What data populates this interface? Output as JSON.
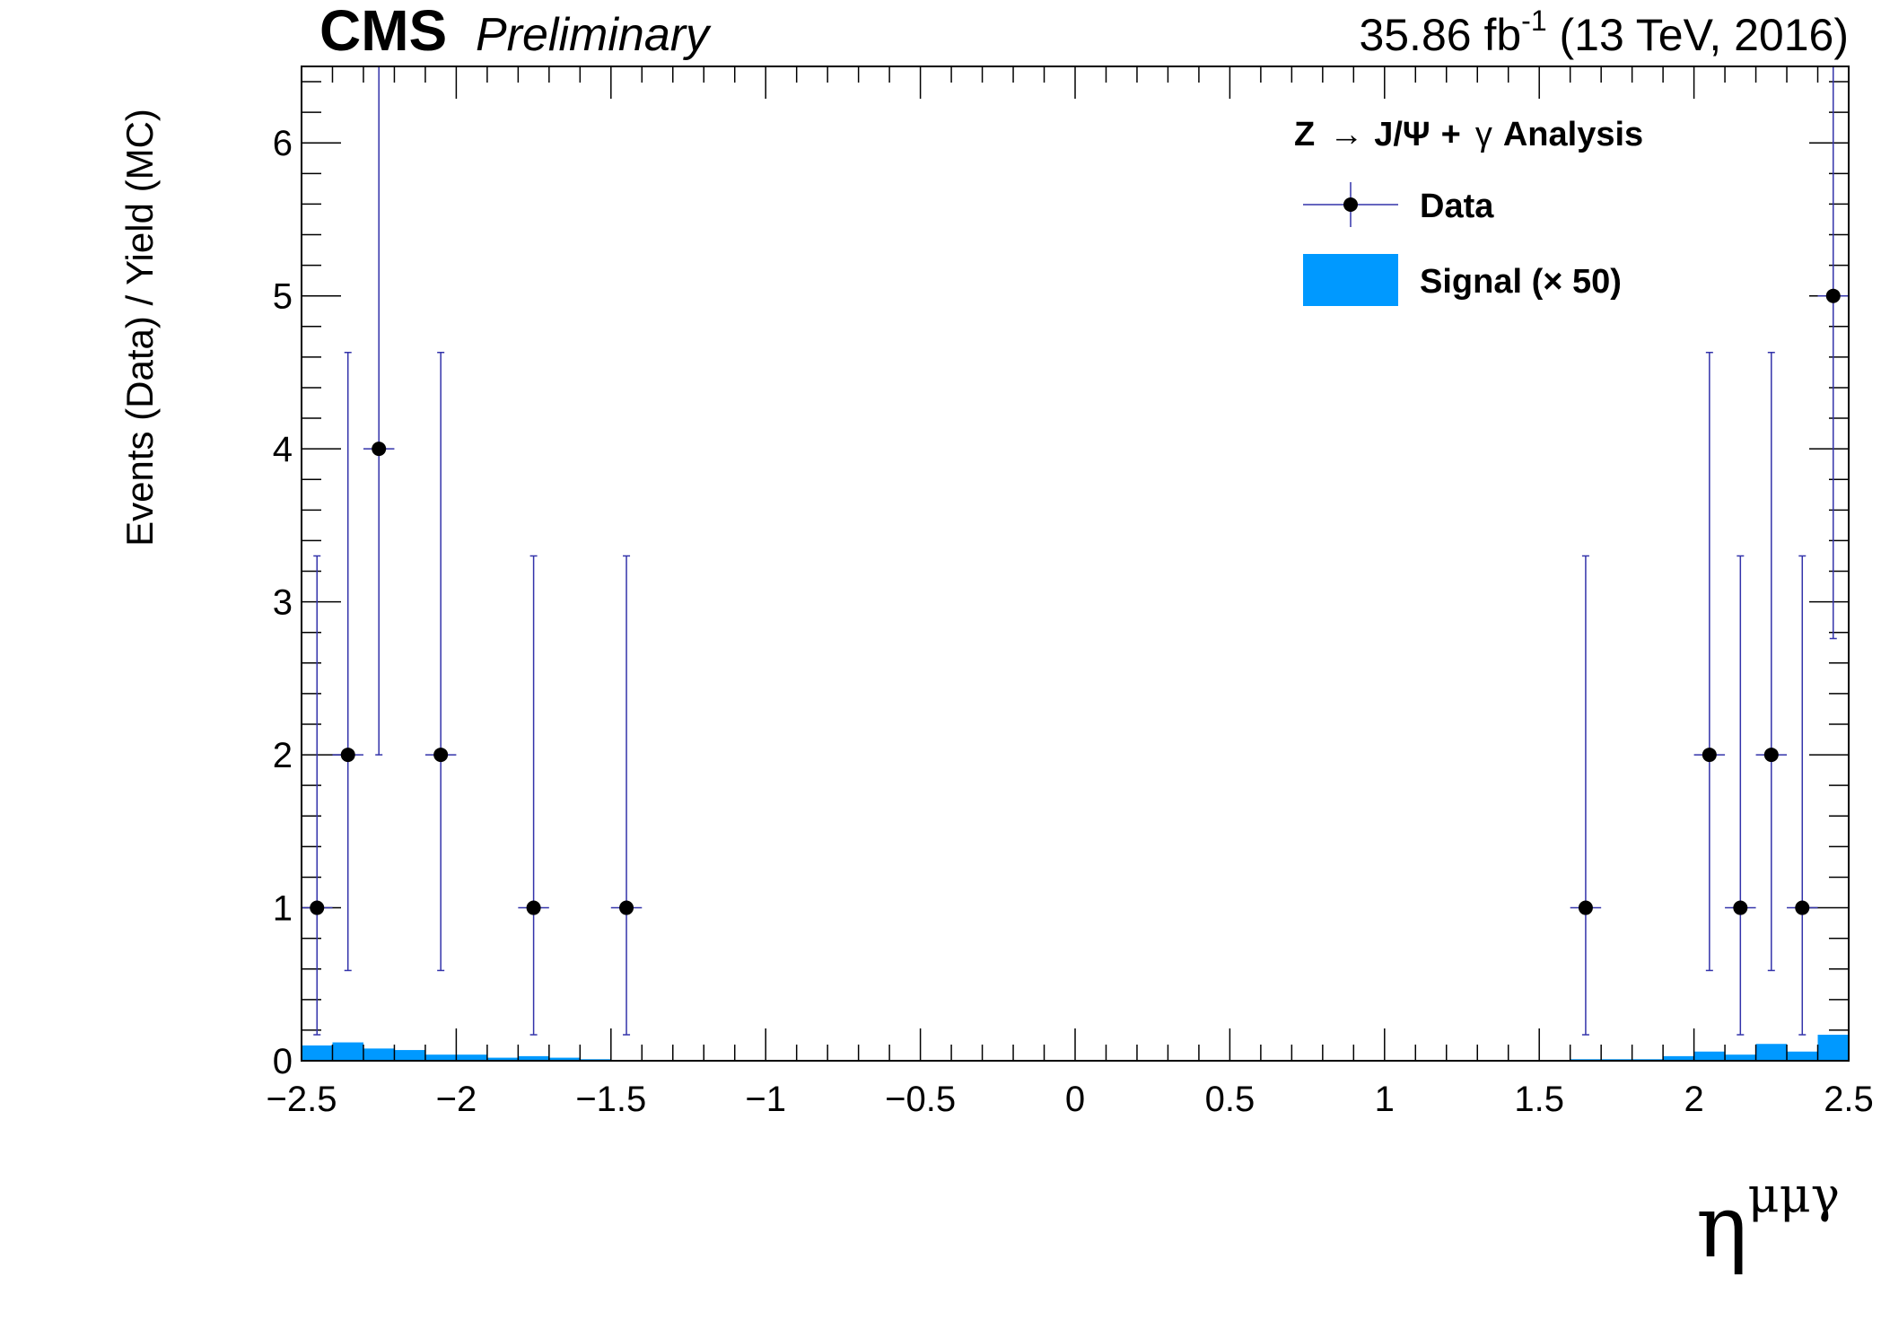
{
  "header": {
    "cms": "CMS",
    "preliminary": "Preliminary",
    "lumi_value": "35.86 fb",
    "lumi_exp": "-1",
    "lumi_rest": " (13 TeV, 2016)"
  },
  "legend": {
    "title_z": "Z",
    "title_arrow": "→",
    "title_jpsi": "J/Ψ",
    "title_plus": "+",
    "title_gamma": "γ",
    "title_analysis": "Analysis",
    "data_label": "Data",
    "signal_label": "Signal (× 50)"
  },
  "colors": {
    "signal_fill": "#0099ff",
    "data_marker": "#000000",
    "error_bar": "#3333aa"
  },
  "chart_data": {
    "type": "bar",
    "ylabel": "Events (Data) / Yield (MC)",
    "xlabel_base": "η",
    "xlabel_sup": "μμγ",
    "xlim": [
      -2.5,
      2.5
    ],
    "ylim": [
      0,
      6.5
    ],
    "x_ticks": [
      -2.5,
      -2,
      -1.5,
      -1,
      -0.5,
      0,
      0.5,
      1,
      1.5,
      2,
      2.5
    ],
    "x_tick_labels": [
      "−2.5",
      "−2",
      "−1.5",
      "−1",
      "−0.5",
      "0",
      "0.5",
      "1",
      "1.5",
      "2",
      "2.5"
    ],
    "y_ticks": [
      0,
      1,
      2,
      3,
      4,
      5,
      6
    ],
    "y_tick_labels": [
      "0",
      "1",
      "2",
      "3",
      "4",
      "5",
      "6"
    ],
    "bin_width": 0.1,
    "signal": {
      "name": "Signal (× 50)",
      "bin_edges_low": [
        -2.5,
        -2.4,
        -2.3,
        -2.2,
        -2.1,
        -2.0,
        -1.9,
        -1.8,
        -1.7,
        -1.6,
        -1.5,
        1.2,
        1.3,
        1.4,
        1.5,
        1.6,
        1.7,
        1.8,
        1.9,
        2.0,
        2.1,
        2.2,
        2.3,
        2.4
      ],
      "values": [
        0.1,
        0.12,
        0.08,
        0.07,
        0.04,
        0.04,
        0.02,
        0.03,
        0.02,
        0.01,
        0.005,
        0.005,
        0.005,
        0.005,
        0.005,
        0.01,
        0.01,
        0.01,
        0.03,
        0.06,
        0.04,
        0.11,
        0.06,
        0.17
      ]
    },
    "data": {
      "name": "Data",
      "x": [
        -2.45,
        -2.35,
        -2.25,
        -2.05,
        -1.75,
        -1.45,
        1.65,
        2.05,
        2.15,
        2.25,
        2.35,
        2.45
      ],
      "y": [
        1,
        2,
        4,
        2,
        1,
        1,
        1,
        2,
        1,
        2,
        1,
        5
      ],
      "err_low": [
        0.83,
        1.41,
        2.0,
        1.41,
        0.83,
        0.83,
        0.83,
        1.41,
        0.83,
        1.41,
        0.83,
        2.24
      ],
      "err_high": [
        2.3,
        2.63,
        3.16,
        2.63,
        2.3,
        2.3,
        2.3,
        2.63,
        2.3,
        2.63,
        2.3,
        3.38
      ]
    }
  }
}
